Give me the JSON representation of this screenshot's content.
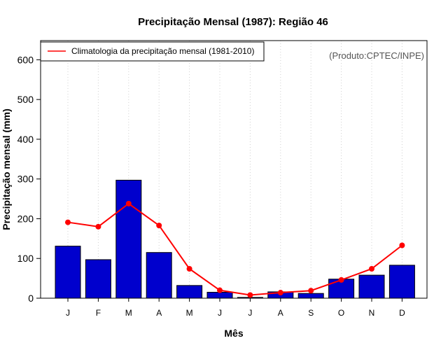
{
  "chart_data": {
    "type": "bar",
    "title": "Precipitação Mensal (1987): Região 46",
    "xlabel": "Mês",
    "ylabel": "Precipitação mensal (mm)",
    "ylim": [
      0,
      650
    ],
    "yticks": [
      0,
      100,
      200,
      300,
      400,
      500,
      600
    ],
    "categories": [
      "J",
      "F",
      "M",
      "A",
      "M",
      "J",
      "J",
      "A",
      "S",
      "O",
      "N",
      "D"
    ],
    "series": [
      {
        "name": "Precipitação mensal (1987)",
        "type": "bar",
        "color": "#0000cd",
        "values": [
          131,
          97,
          297,
          115,
          32,
          15,
          2,
          16,
          12,
          48,
          58,
          83
        ]
      },
      {
        "name": "Climatologia da precipitação mensal (1981-2010)",
        "type": "line",
        "color": "#ff0000",
        "values": [
          191,
          180,
          238,
          183,
          74,
          20,
          8,
          14,
          19,
          46,
          74,
          133
        ]
      }
    ],
    "legend": {
      "position": "top-left",
      "label": "Climatologia da precipitação mensal (1981-2010)"
    },
    "annotation": "(Produto:CPTEC/INPE)",
    "grid": "vertical-dotted"
  }
}
